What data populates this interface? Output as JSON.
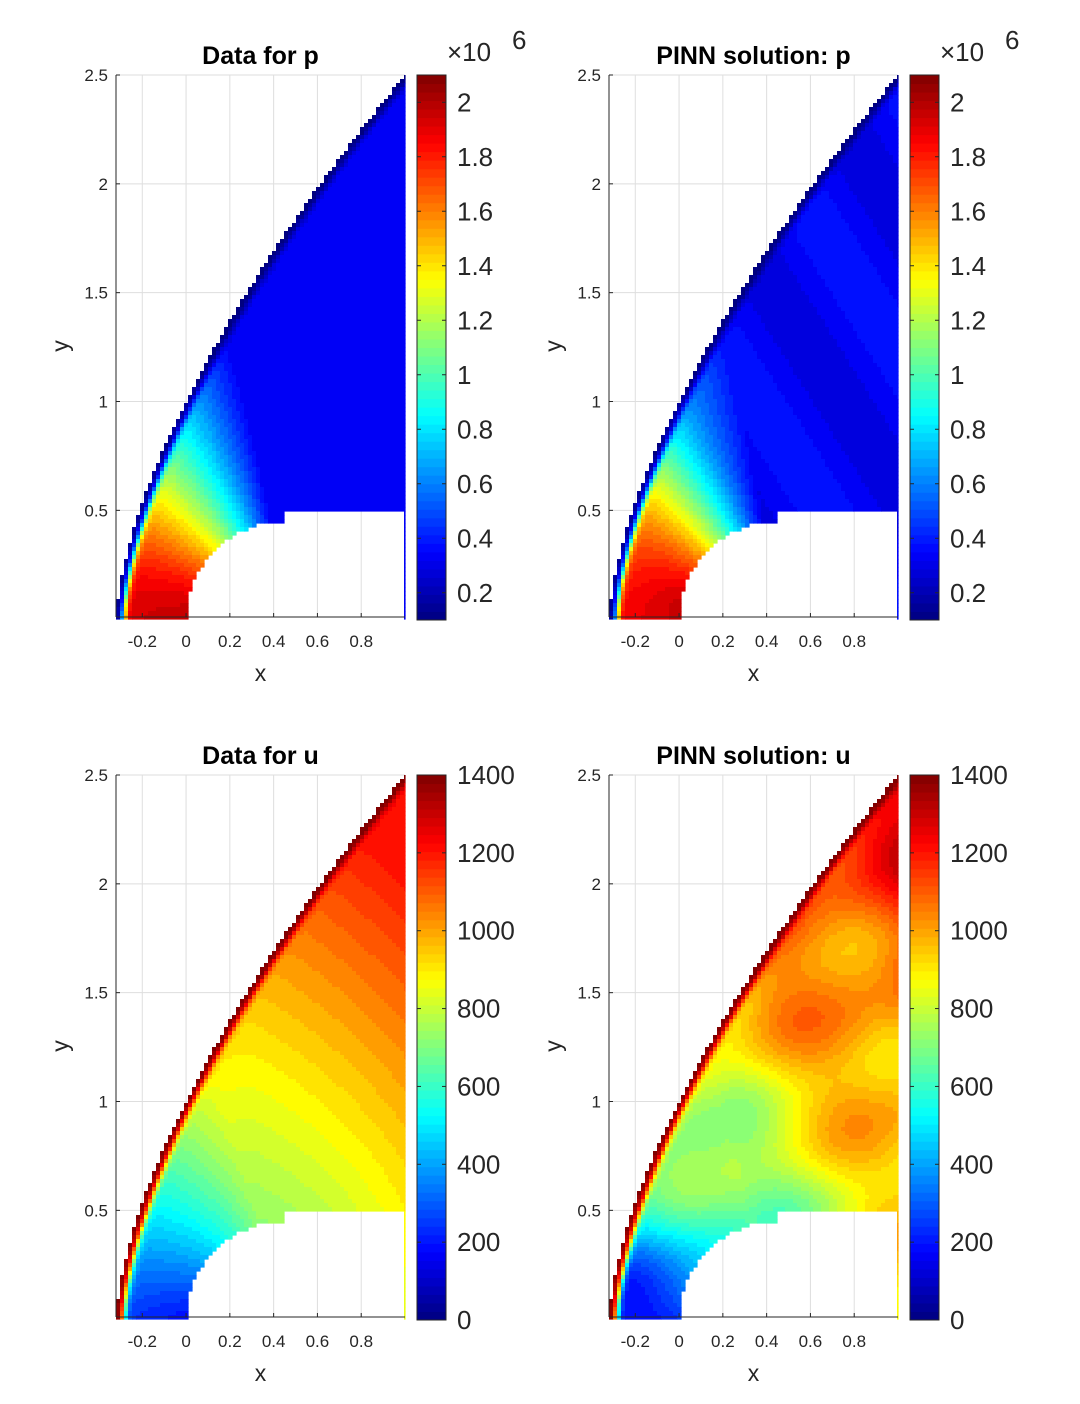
{
  "chart_data": [
    {
      "type": "heatmap",
      "title": "Data for p",
      "field": "p",
      "variant": "data",
      "xlabel": "x",
      "ylabel": "y",
      "xlim": [
        -0.32,
        1.0
      ],
      "ylim": [
        0.01,
        2.5
      ],
      "xticks": [
        -0.2,
        0,
        0.2,
        0.4,
        0.6,
        0.8
      ],
      "xtick_labels": [
        "-0.2",
        "0",
        "0.2",
        "0.4",
        "0.6",
        "0.8"
      ],
      "yticks": [
        0.5,
        1,
        1.5,
        2,
        2.5
      ],
      "ytick_labels": [
        "0.5",
        "1",
        "1.5",
        "2",
        "2.5"
      ],
      "grid": true,
      "colormap": "jet",
      "colorbar": {
        "range": [
          0.1,
          2.1
        ],
        "ticks": [
          0.2,
          0.4,
          0.6,
          0.8,
          1.0,
          1.2,
          1.4,
          1.6,
          1.8,
          2.0
        ],
        "tick_labels": [
          "0.2",
          "0.4",
          "0.6",
          "0.8",
          "1",
          "1.2",
          "1.4",
          "1.6",
          "1.8",
          "2"
        ],
        "multiplier_base": "×10",
        "multiplier_exp": "6"
      }
    },
    {
      "type": "heatmap",
      "title": "PINN solution: p",
      "field": "p",
      "variant": "pinn",
      "xlabel": "x",
      "ylabel": "y",
      "xlim": [
        -0.32,
        1.0
      ],
      "ylim": [
        0.01,
        2.5
      ],
      "xticks": [
        -0.2,
        0,
        0.2,
        0.4,
        0.6,
        0.8
      ],
      "xtick_labels": [
        "-0.2",
        "0",
        "0.2",
        "0.4",
        "0.6",
        "0.8"
      ],
      "yticks": [
        0.5,
        1,
        1.5,
        2,
        2.5
      ],
      "ytick_labels": [
        "0.5",
        "1",
        "1.5",
        "2",
        "2.5"
      ],
      "grid": true,
      "colormap": "jet",
      "colorbar": {
        "range": [
          0.1,
          2.1
        ],
        "ticks": [
          0.2,
          0.4,
          0.6,
          0.8,
          1.0,
          1.2,
          1.4,
          1.6,
          1.8,
          2.0
        ],
        "tick_labels": [
          "0.2",
          "0.4",
          "0.6",
          "0.8",
          "1",
          "1.2",
          "1.4",
          "1.6",
          "1.8",
          "2"
        ],
        "multiplier_base": "×10",
        "multiplier_exp": "6"
      }
    },
    {
      "type": "heatmap",
      "title": "Data for u",
      "field": "u",
      "variant": "data",
      "xlabel": "x",
      "ylabel": "y",
      "xlim": [
        -0.32,
        1.0
      ],
      "ylim": [
        0.01,
        2.5
      ],
      "xticks": [
        -0.2,
        0,
        0.2,
        0.4,
        0.6,
        0.8
      ],
      "xtick_labels": [
        "-0.2",
        "0",
        "0.2",
        "0.4",
        "0.6",
        "0.8"
      ],
      "yticks": [
        0.5,
        1,
        1.5,
        2,
        2.5
      ],
      "ytick_labels": [
        "0.5",
        "1",
        "1.5",
        "2",
        "2.5"
      ],
      "grid": true,
      "colormap": "jet",
      "colorbar": {
        "range": [
          0,
          1400
        ],
        "ticks": [
          0,
          200,
          400,
          600,
          800,
          1000,
          1200,
          1400
        ],
        "tick_labels": [
          "0",
          "200",
          "400",
          "600",
          "800",
          "1000",
          "1200",
          "1400"
        ]
      }
    },
    {
      "type": "heatmap",
      "title": "PINN solution: u",
      "field": "u",
      "variant": "pinn",
      "xlabel": "x",
      "ylabel": "y",
      "xlim": [
        -0.32,
        1.0
      ],
      "ylim": [
        0.01,
        2.5
      ],
      "xticks": [
        -0.2,
        0,
        0.2,
        0.4,
        0.6,
        0.8
      ],
      "xtick_labels": [
        "-0.2",
        "0",
        "0.2",
        "0.4",
        "0.6",
        "0.8"
      ],
      "yticks": [
        0.5,
        1,
        1.5,
        2,
        2.5
      ],
      "ytick_labels": [
        "0.5",
        "1",
        "1.5",
        "2",
        "2.5"
      ],
      "grid": true,
      "colormap": "jet",
      "colorbar": {
        "range": [
          0,
          1400
        ],
        "ticks": [
          0,
          200,
          400,
          600,
          800,
          1000,
          1200,
          1400
        ],
        "tick_labels": [
          "0",
          "200",
          "400",
          "600",
          "800",
          "1000",
          "1200",
          "1400"
        ]
      }
    }
  ]
}
